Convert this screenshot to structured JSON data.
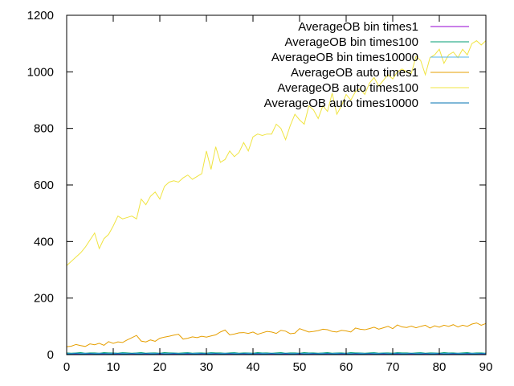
{
  "chart_data": {
    "type": "line",
    "title": "",
    "xlabel": "",
    "ylabel": "",
    "xlim": [
      0,
      90
    ],
    "ylim": [
      0,
      1200
    ],
    "grid": false,
    "legend_placement": "top-right",
    "xticks": [
      "0",
      "10",
      "20",
      "30",
      "40",
      "50",
      "60",
      "70",
      "80",
      "90"
    ],
    "yticks": [
      "0",
      "200",
      "400",
      "600",
      "800",
      "1000",
      "1200"
    ],
    "x": [
      0,
      1,
      2,
      3,
      4,
      5,
      6,
      7,
      8,
      9,
      10,
      11,
      12,
      13,
      14,
      15,
      16,
      17,
      18,
      19,
      20,
      21,
      22,
      23,
      24,
      25,
      26,
      27,
      28,
      29,
      30,
      31,
      32,
      33,
      34,
      35,
      36,
      37,
      38,
      39,
      40,
      41,
      42,
      43,
      44,
      45,
      46,
      47,
      48,
      49,
      50,
      51,
      52,
      53,
      54,
      55,
      56,
      57,
      58,
      59,
      60,
      61,
      62,
      63,
      64,
      65,
      66,
      67,
      68,
      69,
      70,
      71,
      72,
      73,
      74,
      75,
      76,
      77,
      78,
      79,
      80,
      81,
      82,
      83,
      84,
      85,
      86,
      87,
      88,
      89,
      90
    ],
    "series": [
      {
        "name": "AverageOB bin times1",
        "color": "#9400d3",
        "values": [
          2,
          2,
          3,
          2,
          2,
          3,
          2,
          2,
          3,
          2,
          2,
          3,
          2,
          2,
          3,
          2,
          2,
          3,
          2,
          2,
          3,
          2,
          2,
          3,
          2,
          2,
          3,
          2,
          2,
          3,
          2,
          2,
          3,
          2,
          2,
          3,
          2,
          2,
          3,
          2,
          2,
          3,
          2,
          2,
          3,
          2,
          2,
          3,
          2,
          2,
          3,
          2,
          2,
          3,
          2,
          2,
          3,
          2,
          2,
          3,
          2,
          2,
          3,
          2,
          2,
          3,
          2,
          2,
          3,
          2,
          2,
          3,
          2,
          2,
          3,
          2,
          2,
          3,
          2,
          2,
          3,
          2,
          2,
          3,
          2,
          2,
          3,
          2,
          2,
          3,
          2
        ]
      },
      {
        "name": "AverageOB bin times100",
        "color": "#009e73",
        "values": [
          6,
          5,
          6,
          7,
          5,
          6,
          6,
          5,
          7,
          6,
          6,
          5,
          7,
          6,
          5,
          6,
          7,
          5,
          6,
          6,
          5,
          7,
          6,
          6,
          5,
          6,
          7,
          5,
          6,
          6,
          5,
          7,
          6,
          6,
          5,
          6,
          7,
          5,
          6,
          6,
          5,
          7,
          6,
          6,
          5,
          6,
          7,
          5,
          6,
          6,
          5,
          7,
          6,
          6,
          5,
          6,
          7,
          5,
          6,
          6,
          5,
          7,
          6,
          6,
          5,
          6,
          7,
          5,
          6,
          6,
          5,
          7,
          6,
          6,
          5,
          6,
          7,
          5,
          6,
          6,
          5,
          7,
          6,
          6,
          5,
          6,
          7,
          5,
          6,
          6,
          5
        ]
      },
      {
        "name": "AverageOB bin times10000",
        "color": "#56b4e9",
        "values": [
          4,
          4,
          5,
          4,
          5,
          4,
          4,
          5,
          4,
          4,
          5,
          4,
          5,
          4,
          4,
          5,
          4,
          4,
          5,
          4,
          5,
          4,
          4,
          5,
          4,
          4,
          5,
          4,
          5,
          4,
          4,
          5,
          4,
          4,
          5,
          4,
          5,
          4,
          4,
          5,
          4,
          4,
          5,
          4,
          5,
          4,
          4,
          5,
          4,
          4,
          5,
          4,
          5,
          4,
          4,
          5,
          4,
          4,
          5,
          4,
          5,
          4,
          4,
          5,
          4,
          4,
          5,
          4,
          5,
          4,
          4,
          5,
          4,
          4,
          5,
          4,
          5,
          4,
          4,
          5,
          4,
          4,
          5,
          4,
          5,
          4,
          4,
          5,
          4,
          4,
          5
        ]
      },
      {
        "name": "AverageOB auto times1",
        "color": "#e69f00",
        "values": [
          28,
          30,
          36,
          32,
          29,
          38,
          35,
          40,
          33,
          46,
          40,
          45,
          43,
          52,
          60,
          68,
          48,
          45,
          52,
          47,
          58,
          62,
          65,
          69,
          72,
          55,
          58,
          63,
          60,
          65,
          62,
          66,
          70,
          80,
          87,
          70,
          73,
          77,
          78,
          75,
          80,
          72,
          77,
          82,
          80,
          75,
          86,
          83,
          74,
          76,
          92,
          86,
          80,
          82,
          85,
          90,
          88,
          82,
          80,
          86,
          84,
          80,
          94,
          90,
          88,
          92,
          97,
          90,
          95,
          100,
          92,
          105,
          98,
          96,
          101,
          95,
          100,
          104,
          94,
          102,
          97,
          104,
          100,
          106,
          98,
          104,
          100,
          108,
          112,
          104,
          110
        ]
      },
      {
        "name": "AverageOB auto times100",
        "color": "#f0e442",
        "values": [
          315,
          330,
          345,
          360,
          380,
          405,
          430,
          375,
          410,
          425,
          455,
          490,
          480,
          485,
          490,
          480,
          550,
          530,
          560,
          575,
          550,
          595,
          610,
          615,
          610,
          625,
          635,
          620,
          630,
          640,
          720,
          655,
          735,
          680,
          690,
          720,
          700,
          715,
          750,
          720,
          770,
          780,
          775,
          780,
          780,
          815,
          800,
          760,
          810,
          850,
          830,
          815,
          880,
          865,
          835,
          880,
          860,
          925,
          850,
          880,
          920,
          900,
          930,
          940,
          920,
          960,
          980,
          950,
          970,
          990,
          975,
          1000,
          1010,
          1000,
          995,
          1055,
          1040,
          990,
          1050,
          1060,
          1080,
          1030,
          1060,
          1070,
          1050,
          1080,
          1060,
          1100,
          1110,
          1095,
          1110
        ]
      },
      {
        "name": "AverageOB auto times10000",
        "color": "#0072b2",
        "values": [
          3,
          3,
          4,
          3,
          3,
          4,
          3,
          3,
          4,
          3,
          3,
          4,
          3,
          3,
          4,
          3,
          3,
          4,
          3,
          3,
          4,
          3,
          3,
          4,
          3,
          3,
          4,
          3,
          3,
          4,
          3,
          3,
          4,
          3,
          3,
          4,
          3,
          3,
          4,
          3,
          3,
          4,
          3,
          3,
          4,
          3,
          3,
          4,
          3,
          3,
          4,
          3,
          3,
          4,
          3,
          3,
          4,
          3,
          3,
          4,
          3,
          3,
          4,
          3,
          3,
          4,
          3,
          3,
          4,
          3,
          3,
          4,
          3,
          3,
          4,
          3,
          3,
          4,
          3,
          3,
          4,
          3,
          3,
          4,
          3,
          3,
          4,
          3,
          3,
          4,
          3
        ]
      }
    ]
  }
}
